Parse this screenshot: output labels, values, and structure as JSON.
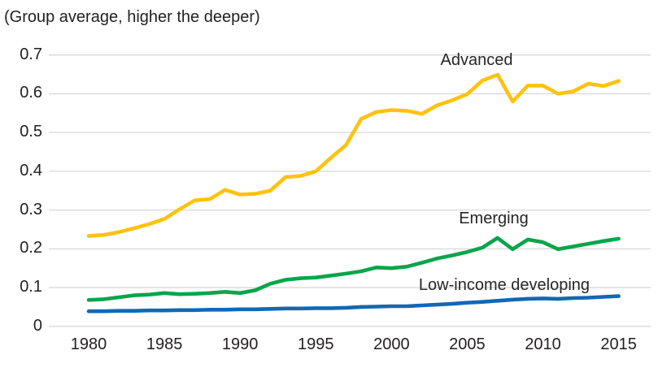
{
  "chart": {
    "subtitle": "(Group average, higher the deeper)",
    "colors": {
      "advanced": "#FFC20E",
      "emerging": "#0AA54B",
      "low_income": "#1268B4",
      "grid": "#D9D9D9",
      "text": "#231F20"
    }
  },
  "chart_data": {
    "type": "line",
    "title": "",
    "subtitle": "(Group average, higher the deeper)",
    "xlabel": "",
    "ylabel": "",
    "xlim": [
      1980,
      2015
    ],
    "ylim": [
      0,
      0.7
    ],
    "xticks": [
      1980,
      1985,
      1990,
      1995,
      2000,
      2005,
      2010,
      2015
    ],
    "yticks": [
      0,
      0.1,
      0.2,
      0.3,
      0.4,
      0.5,
      0.6,
      0.7
    ],
    "grid": "horizontal",
    "legend": "inline-labels",
    "x": [
      1980,
      1981,
      1982,
      1983,
      1984,
      1985,
      1986,
      1987,
      1988,
      1989,
      1990,
      1991,
      1992,
      1993,
      1994,
      1995,
      1996,
      1997,
      1998,
      1999,
      2000,
      2001,
      2002,
      2003,
      2004,
      2005,
      2006,
      2007,
      2008,
      2009,
      2010,
      2011,
      2012,
      2013,
      2014,
      2015
    ],
    "series": [
      {
        "name": "Advanced",
        "color": "#FFC20E",
        "values": [
          0.233,
          0.236,
          0.243,
          0.253,
          0.264,
          0.277,
          0.302,
          0.325,
          0.328,
          0.352,
          0.34,
          0.342,
          0.35,
          0.385,
          0.388,
          0.4,
          0.435,
          0.468,
          0.535,
          0.553,
          0.558,
          0.556,
          0.548,
          0.57,
          0.583,
          0.599,
          0.634,
          0.649,
          0.58,
          0.621,
          0.621,
          0.6,
          0.606,
          0.626,
          0.62,
          0.633
        ]
      },
      {
        "name": "Emerging",
        "color": "#0AA54B",
        "values": [
          0.068,
          0.07,
          0.075,
          0.08,
          0.082,
          0.086,
          0.083,
          0.084,
          0.086,
          0.089,
          0.086,
          0.093,
          0.11,
          0.12,
          0.124,
          0.126,
          0.131,
          0.136,
          0.142,
          0.152,
          0.15,
          0.154,
          0.164,
          0.175,
          0.183,
          0.192,
          0.203,
          0.228,
          0.199,
          0.224,
          0.217,
          0.199,
          0.206,
          0.213,
          0.22,
          0.226
        ]
      },
      {
        "name": "Low-income developing",
        "color": "#1268B4",
        "values": [
          0.039,
          0.039,
          0.04,
          0.04,
          0.041,
          0.041,
          0.042,
          0.042,
          0.043,
          0.043,
          0.044,
          0.044,
          0.045,
          0.046,
          0.046,
          0.047,
          0.047,
          0.048,
          0.05,
          0.051,
          0.052,
          0.052,
          0.054,
          0.056,
          0.058,
          0.061,
          0.063,
          0.066,
          0.069,
          0.071,
          0.072,
          0.071,
          0.073,
          0.074,
          0.076,
          0.078
        ]
      }
    ]
  }
}
